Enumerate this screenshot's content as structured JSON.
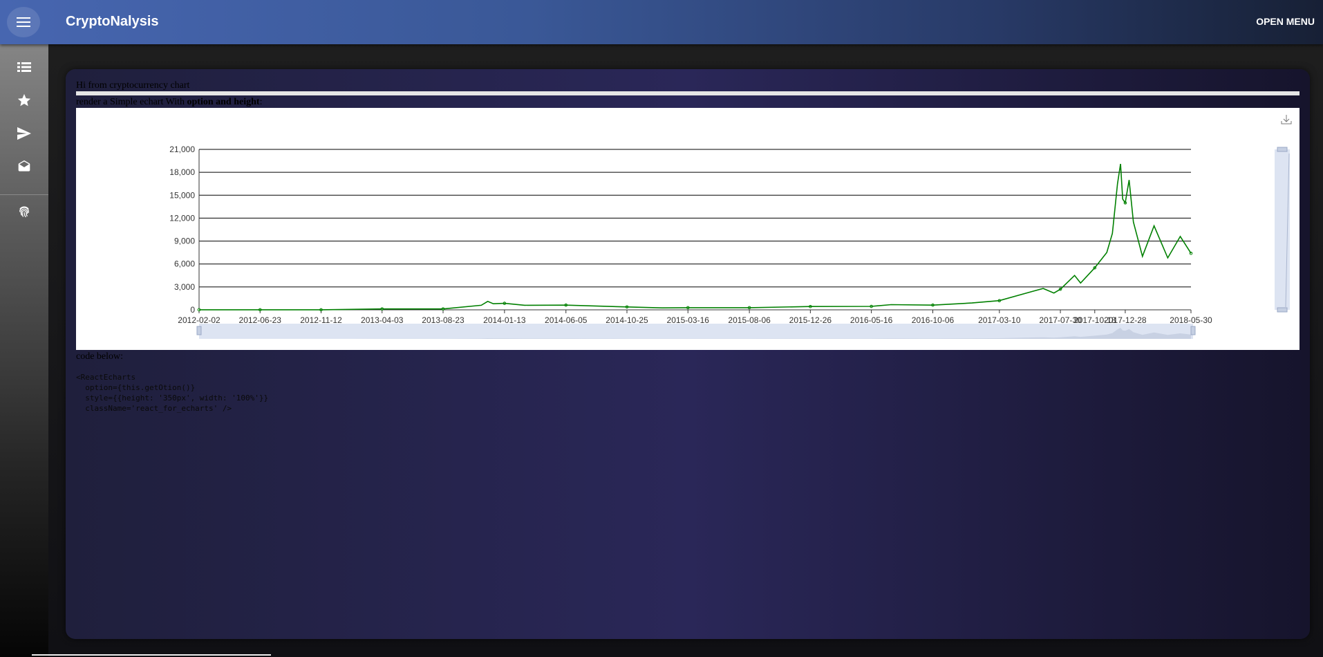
{
  "app": {
    "title": "CryptoNalysis",
    "open_menu_label": "OPEN MENU"
  },
  "sidebar": {
    "items": [
      {
        "icon": "list-icon"
      },
      {
        "icon": "star-icon"
      },
      {
        "icon": "send-icon"
      },
      {
        "icon": "drafts-icon"
      },
      {
        "icon": "fingerprint-icon"
      }
    ]
  },
  "content": {
    "greeting": "Hi from cryptocurrency chart",
    "render_prefix": "render a Simple echart With ",
    "render_bold": "option and height",
    "render_suffix": ":",
    "code_intro": "code below:",
    "code_snippet": "<ReactEcharts\n  option={this.getOtion()}\n  style={{height: '350px', width: '100%'}}\n  className='react_for_echarts' />"
  },
  "colors": {
    "line": "#008000",
    "appbar_start": "#4766b0",
    "appbar_end": "#172035",
    "datazoom": "#d2dbee"
  },
  "chart_data": {
    "type": "line",
    "title": "",
    "xlabel": "",
    "ylabel": "",
    "grid": true,
    "ylim": [
      0,
      21000
    ],
    "yticks": [
      "0",
      "3,000",
      "6,000",
      "9,000",
      "12,000",
      "15,000",
      "18,000",
      "21,000"
    ],
    "xticks": [
      "2012-02-02",
      "2012-06-23",
      "2012-11-12",
      "2013-04-03",
      "2013-08-23",
      "2014-01-13",
      "2014-06-05",
      "2014-10-25",
      "2015-03-16",
      "2015-08-06",
      "2015-12-26",
      "2016-05-16",
      "2016-10-06",
      "2017-03-10",
      "2017-07-30",
      "2017-10-18",
      "2017-12-28",
      "2018-05-30"
    ],
    "series": [
      {
        "x": [
          "2012-02-02",
          "2012-06-23",
          "2012-11-12",
          "2013-04-03",
          "2013-08-23",
          "2013-11-20",
          "2013-12-05",
          "2013-12-18",
          "2014-01-13",
          "2014-03-01",
          "2014-06-05",
          "2014-10-25",
          "2015-01-15",
          "2015-03-16",
          "2015-08-06",
          "2015-12-26",
          "2016-05-16",
          "2016-07-01",
          "2016-10-06",
          "2017-01-05",
          "2017-03-10",
          "2017-05-25",
          "2017-06-20",
          "2017-07-15",
          "2017-07-30",
          "2017-09-01",
          "2017-09-15",
          "2017-10-18",
          "2017-11-15",
          "2017-11-28",
          "2017-12-10",
          "2017-12-17",
          "2017-12-22",
          "2017-12-28",
          "2018-01-06",
          "2018-01-16",
          "2018-02-06",
          "2018-03-05",
          "2018-04-06",
          "2018-05-05",
          "2018-05-30"
        ],
        "y": [
          6,
          7,
          11,
          120,
          120,
          600,
          1100,
          800,
          850,
          600,
          620,
          380,
          250,
          280,
          280,
          430,
          450,
          680,
          620,
          900,
          1200,
          2400,
          2800,
          2200,
          2700,
          4500,
          3500,
          5500,
          7500,
          10000,
          16500,
          19100,
          14500,
          14000,
          17000,
          11500,
          7000,
          11000,
          6800,
          9600,
          7400
        ]
      }
    ],
    "data_zoom": {
      "start": 0,
      "end": 100
    }
  }
}
